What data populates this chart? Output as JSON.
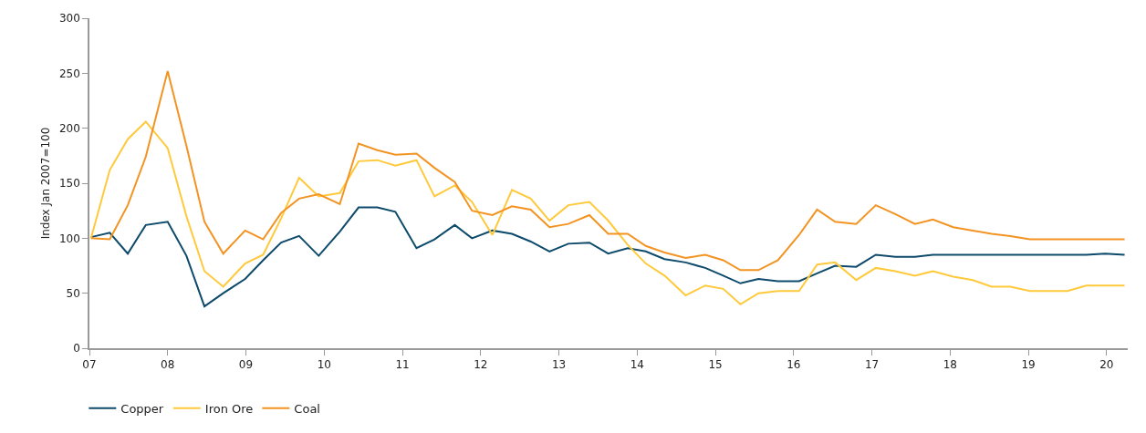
{
  "chart_data": {
    "type": "line",
    "ylabel": "Index Jan 2007=100",
    "x": [
      7.02,
      7.26,
      7.49,
      7.72,
      8.0,
      8.24,
      8.47,
      8.71,
      8.99,
      9.22,
      9.45,
      9.68,
      9.93,
      10.2,
      10.44,
      10.68,
      10.91,
      11.18,
      11.41,
      11.67,
      11.89,
      12.15,
      12.4,
      12.64,
      12.88,
      13.12,
      13.39,
      13.63,
      13.88,
      14.11,
      14.35,
      14.62,
      14.87,
      15.1,
      15.32,
      15.55,
      15.8,
      16.07,
      16.3,
      16.53,
      16.8,
      17.05,
      17.3,
      17.55,
      17.78,
      18.04,
      18.29,
      18.53,
      18.77,
      19.02,
      19.26,
      19.5,
      19.74,
      19.98,
      20.23
    ],
    "series": [
      {
        "name": "Copper",
        "color": "#0d4a6b",
        "values": [
          101,
          105,
          86,
          112,
          115,
          84,
          38,
          50,
          63,
          80,
          96,
          102,
          84,
          106,
          128,
          128,
          124,
          91,
          99,
          112,
          100,
          107,
          104,
          97,
          88,
          95,
          96,
          86,
          91,
          88,
          81,
          78,
          73,
          66,
          59,
          63,
          61,
          61,
          68,
          75,
          74,
          85,
          83,
          83,
          85,
          85,
          85,
          85,
          85,
          85,
          85,
          85,
          85,
          86,
          85
        ]
      },
      {
        "name": "Iron Ore",
        "color": "#fec93a",
        "values": [
          100,
          162,
          190,
          206,
          182,
          120,
          70,
          56,
          77,
          85,
          118,
          155,
          138,
          141,
          170,
          171,
          166,
          171,
          138,
          148,
          133,
          103,
          144,
          136,
          116,
          130,
          133,
          116,
          94,
          77,
          66,
          48,
          57,
          54,
          40,
          50,
          52,
          52,
          76,
          78,
          62,
          73,
          70,
          66,
          70,
          65,
          62,
          56,
          56,
          52,
          52,
          52,
          57,
          57,
          57
        ]
      },
      {
        "name": "Coal",
        "color": "#f39321",
        "values": [
          100,
          99,
          130,
          174,
          252,
          184,
          115,
          86,
          107,
          99,
          123,
          136,
          140,
          131,
          186,
          180,
          176,
          177,
          164,
          151,
          125,
          121,
          129,
          126,
          110,
          113,
          121,
          104,
          104,
          93,
          87,
          82,
          85,
          80,
          71,
          71,
          80,
          103,
          126,
          115,
          113,
          130,
          122,
          113,
          117,
          110,
          107,
          104,
          102,
          99,
          99,
          99,
          99,
          99,
          99
        ]
      }
    ],
    "xlim": [
      7,
      20.27
    ],
    "xticks": [
      {
        "value": 7,
        "label": "07"
      },
      {
        "value": 8,
        "label": "08"
      },
      {
        "value": 9,
        "label": "09"
      },
      {
        "value": 10,
        "label": "10"
      },
      {
        "value": 11,
        "label": "11"
      },
      {
        "value": 12,
        "label": "12"
      },
      {
        "value": 13,
        "label": "13"
      },
      {
        "value": 14,
        "label": "14"
      },
      {
        "value": 15,
        "label": "15"
      },
      {
        "value": 16,
        "label": "16"
      },
      {
        "value": 17,
        "label": "17"
      },
      {
        "value": 18,
        "label": "18"
      },
      {
        "value": 19,
        "label": "19"
      },
      {
        "value": 20,
        "label": "20"
      }
    ],
    "ylim": [
      0,
      300
    ],
    "yticks": [
      0,
      50,
      100,
      150,
      200,
      250,
      300
    ],
    "grid": false,
    "legend": "bottom left",
    "marker": "none",
    "line_style": "solid"
  }
}
